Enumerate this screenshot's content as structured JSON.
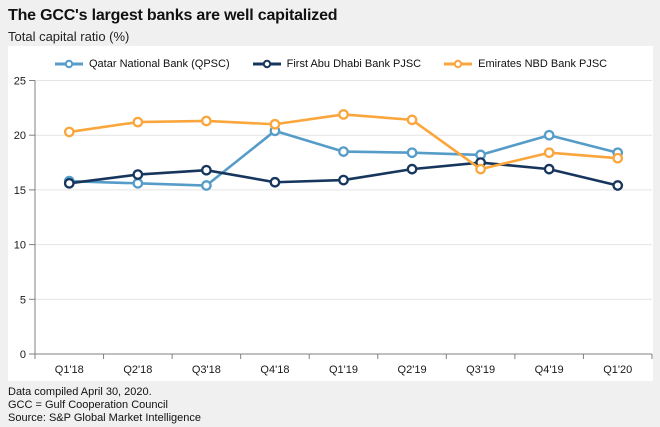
{
  "header": {
    "title": "The GCC's largest banks are well capitalized",
    "subtitle": "Total capital ratio (%)"
  },
  "footer": {
    "line1": "Data compiled April 30, 2020.",
    "line2": "GCC = Gulf Cooperation Council",
    "line3": "Source: S&P Global Market Intelligence"
  },
  "colors": {
    "background": "#F0F0F1",
    "panel": "#FFFFFF",
    "grid": "#E4E4E4",
    "axis": "#808080",
    "text": "#1A1A1A"
  },
  "chart_data": {
    "type": "line",
    "title": "The GCC's largest banks are well capitalized",
    "subtitle": "Total capital ratio (%)",
    "xlabel": "",
    "ylabel": "Total capital ratio (%)",
    "categories": [
      "Q1'18",
      "Q2'18",
      "Q3'18",
      "Q4'18",
      "Q1'19",
      "Q2'19",
      "Q3'19",
      "Q4'19",
      "Q1'20"
    ],
    "series": [
      {
        "name": "Qatar National Bank (QPSC)",
        "color": "#569CC9",
        "values": [
          15.8,
          15.6,
          15.4,
          20.4,
          18.5,
          18.4,
          18.2,
          20.0,
          18.4
        ]
      },
      {
        "name": "First Abu Dhabi Bank PJSC",
        "color": "#17365D",
        "values": [
          15.6,
          16.4,
          16.8,
          15.7,
          15.9,
          16.9,
          17.5,
          16.9,
          15.4
        ]
      },
      {
        "name": "Emirates NBD Bank PJSC",
        "color": "#FAA63C",
        "values": [
          20.3,
          21.2,
          21.3,
          21.0,
          21.9,
          21.4,
          16.9,
          18.4,
          17.9
        ]
      }
    ],
    "ylim": [
      0,
      25
    ],
    "yticks": [
      0,
      5,
      10,
      15,
      20,
      25
    ],
    "grid": "horizontal",
    "legend_position": "top",
    "marker": "open-circle"
  }
}
